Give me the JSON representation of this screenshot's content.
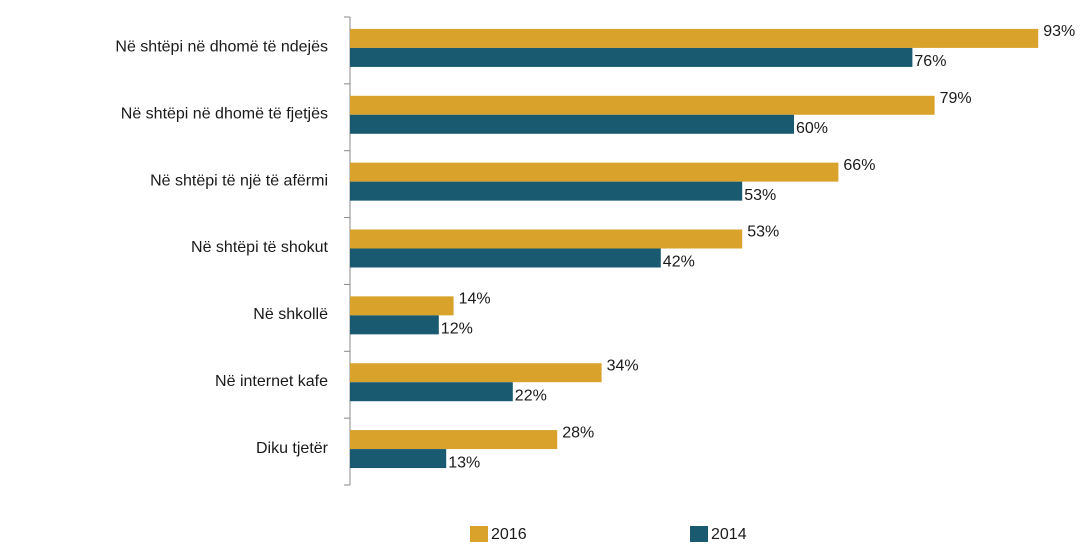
{
  "chart_data": {
    "type": "bar",
    "orientation": "horizontal",
    "categories": [
      "Në shtëpi në dhomë të ndejës",
      "Në shtëpi në dhomë të fjetjës",
      "Në shtëpi të një të afërmi",
      "Në shtëpi të shokut",
      "Në shkollë",
      "Në internet kafe",
      "Diku tjetër"
    ],
    "series": [
      {
        "name": "2016",
        "color": "#d9a32b",
        "values": [
          93,
          79,
          66,
          53,
          14,
          34,
          28
        ],
        "value_labels": [
          "93%",
          "79%",
          "66%",
          "53%",
          "14%",
          "34%",
          "28%"
        ]
      },
      {
        "name": "2014",
        "color": "#195a70",
        "values": [
          76,
          60,
          53,
          42,
          12,
          22,
          13
        ],
        "value_labels": [
          "76%",
          "60%",
          "53%",
          "42%",
          "12%",
          "22%",
          "13%"
        ]
      }
    ]
  }
}
